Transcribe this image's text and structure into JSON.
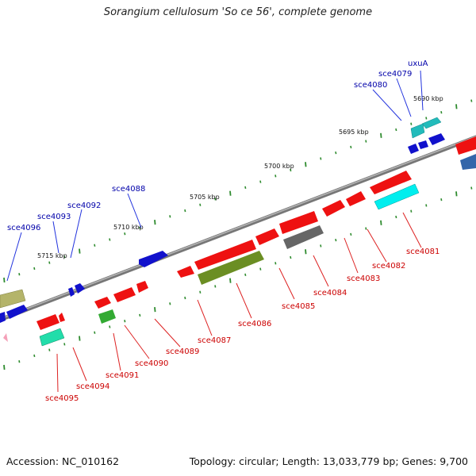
{
  "header": {
    "title": "Sorangium cellulosum 'So ce 56', complete genome"
  },
  "footer": {
    "accession": "Accession: NC_010162",
    "summary": "Topology: circular; Length: 13,033,779 bp; Genes: 9,700"
  },
  "colors": {
    "backbone": "#888888",
    "tick": "#2e8b2e",
    "label_top": "#0000aa",
    "label_bottom": "#cc0000",
    "kbp_text": "#111111"
  },
  "kbp_markers": [
    "5690 kbp",
    "5695 kbp",
    "5700 kbp",
    "5705 kbp",
    "5710 kbp",
    "5715 kbp"
  ],
  "genes_top": [
    "uxuA",
    "sce4079",
    "sce4080",
    "sce4088",
    "sce4092",
    "sce4093",
    "sce4096"
  ],
  "genes_bottom": [
    "sce4081",
    "sce4082",
    "sce4083",
    "sce4084",
    "sce4085",
    "sce4086",
    "sce4087",
    "sce4089",
    "sce4090",
    "sce4091",
    "sce4094",
    "sce4095"
  ]
}
